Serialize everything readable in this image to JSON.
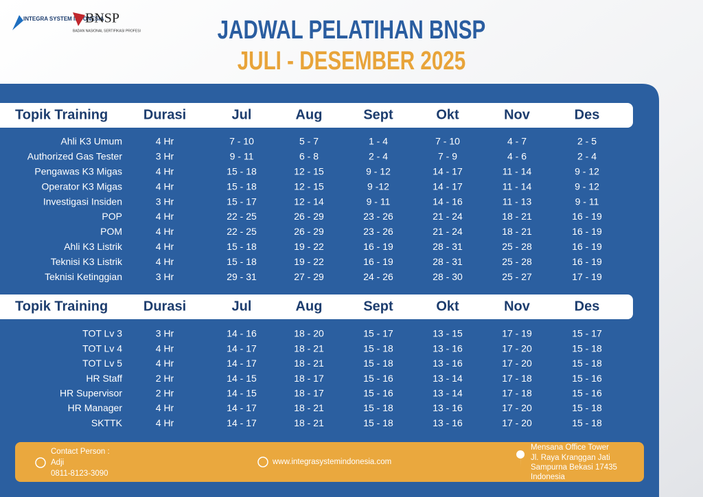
{
  "header": {
    "logos": [
      "INTEGRA SYSTEM INDONESIA",
      "BNSP",
      "BADAN NASIONAL SERTIFIKASI PROFESI"
    ],
    "title": "JADWAL PELATIHAN BNSP",
    "subtitle": "JULI - DESEMBER 2025"
  },
  "tables": [
    {
      "columns": [
        "Topik Training",
        "Durasi",
        "Jul",
        "Aug",
        "Sept",
        "Okt",
        "Nov",
        "Des"
      ],
      "rows": [
        [
          "Ahli K3 Umum",
          "4 Hr",
          "7 - 10",
          "5 - 7",
          "1 - 4",
          "7 - 10",
          "4 - 7",
          "2 - 5"
        ],
        [
          "Authorized Gas Tester",
          "3 Hr",
          "9 - 11",
          "6 - 8",
          "2 - 4",
          "7 - 9",
          "4 - 6",
          "2 - 4"
        ],
        [
          "Pengawas K3 Migas",
          "4 Hr",
          "15 - 18",
          "12 - 15",
          "9 - 12",
          "14 - 17",
          "11 - 14",
          "9 - 12"
        ],
        [
          "Operator K3 Migas",
          "4 Hr",
          "15 - 18",
          "12 - 15",
          "9 -12",
          "14 - 17",
          "11 - 14",
          "9 - 12"
        ],
        [
          "Investigasi Insiden",
          "3 Hr",
          "15 - 17",
          "12 - 14",
          "9 - 11",
          "14 - 16",
          "11 - 13",
          "9 - 11"
        ],
        [
          "POP",
          "4 Hr",
          "22 - 25",
          "26 - 29",
          "23 - 26",
          "21 - 24",
          "18 - 21",
          "16 - 19"
        ],
        [
          "POM",
          "4 Hr",
          "22 - 25",
          "26 - 29",
          "23 - 26",
          "21 - 24",
          "18 - 21",
          "16 - 19"
        ],
        [
          "Ahli K3 Listrik",
          "4 Hr",
          "15 - 18",
          "19 - 22",
          "16 - 19",
          "28 - 31",
          "25 - 28",
          "16 - 19"
        ],
        [
          "Teknisi K3 Listrik",
          "4 Hr",
          "15 - 18",
          "19 - 22",
          "16 - 19",
          "28 - 31",
          "25 - 28",
          "16 - 19"
        ],
        [
          "Teknisi Ketinggian",
          "3 Hr",
          "29 - 31",
          "27 - 29",
          "24 - 26",
          "28 - 30",
          "25 - 27",
          "17 - 19"
        ]
      ]
    },
    {
      "columns": [
        "Topik Training",
        "Durasi",
        "Jul",
        "Aug",
        "Sept",
        "Okt",
        "Nov",
        "Des"
      ],
      "rows": [
        [
          "TOT Lv 3",
          "3 Hr",
          "14 - 16",
          "18 - 20",
          "15 - 17",
          "13 - 15",
          "17 - 19",
          "15 - 17"
        ],
        [
          "TOT Lv 4",
          "4 Hr",
          "14 - 17",
          "18 - 21",
          "15 - 18",
          "13 - 16",
          "17 - 20",
          "15 - 18"
        ],
        [
          "TOT Lv 5",
          "4 Hr",
          "14 - 17",
          "18 - 21",
          "15 - 18",
          "13 - 16",
          "17 - 20",
          "15 - 18"
        ],
        [
          "HR Staff",
          "2 Hr",
          "14 - 15",
          "18 - 17",
          "15 - 16",
          "13 - 14",
          "17 - 18",
          "15 - 16"
        ],
        [
          "HR Supervisor",
          "2 Hr",
          "14 - 15",
          "18 - 17",
          "15 - 16",
          "13 - 14",
          "17 - 18",
          "15 - 16"
        ],
        [
          "HR Manager",
          "4 Hr",
          "14 - 17",
          "18 - 21",
          "15 - 18",
          "13 - 16",
          "17 - 20",
          "15 - 18"
        ],
        [
          "SKTTK",
          "4 Hr",
          "14 - 17",
          "18 - 21",
          "15 - 18",
          "13 - 16",
          "17 - 20",
          "15 - 18"
        ]
      ]
    }
  ],
  "footer": {
    "contact_label": "Contact Person :",
    "contact_name": "Adji",
    "contact_phone": "0811-8123-3090",
    "website": "www.integrasystemindonesia.com",
    "address": [
      "Mensana Office Tower",
      "Jl. Raya Kranggan Jati",
      "Sampurna Bekasi 17435",
      "Indonesia"
    ]
  }
}
